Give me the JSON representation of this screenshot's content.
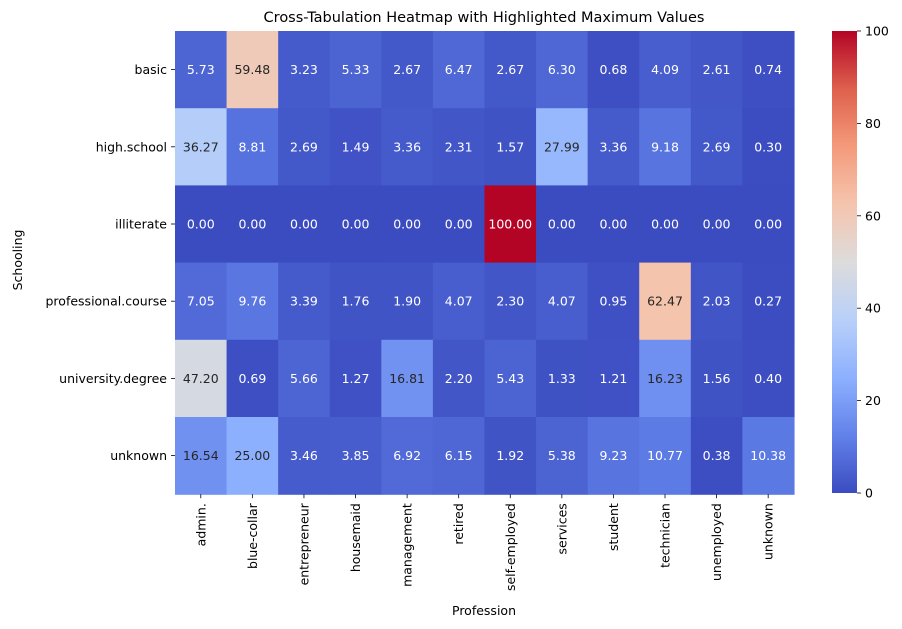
{
  "chart_data": {
    "type": "heatmap",
    "title": "Cross-Tabulation Heatmap with Highlighted Maximum Values",
    "xlabel": "Profession",
    "ylabel": "Schooling",
    "x_categories": [
      "admin.",
      "blue-collar",
      "entrepreneur",
      "housemaid",
      "management",
      "retired",
      "self-employed",
      "services",
      "student",
      "technician",
      "unemployed",
      "unknown"
    ],
    "y_categories": [
      "basic",
      "high.school",
      "illiterate",
      "professional.course",
      "university.degree",
      "unknown"
    ],
    "values": [
      [
        5.73,
        59.48,
        3.23,
        5.33,
        2.67,
        6.47,
        2.67,
        6.3,
        0.68,
        4.09,
        2.61,
        0.74
      ],
      [
        36.27,
        8.81,
        2.69,
        1.49,
        3.36,
        2.31,
        1.57,
        27.99,
        3.36,
        9.18,
        2.69,
        0.3
      ],
      [
        0.0,
        0.0,
        0.0,
        0.0,
        0.0,
        0.0,
        100.0,
        0.0,
        0.0,
        0.0,
        0.0,
        0.0
      ],
      [
        7.05,
        9.76,
        3.39,
        1.76,
        1.9,
        4.07,
        2.3,
        4.07,
        0.95,
        62.47,
        2.03,
        0.27
      ],
      [
        47.2,
        0.69,
        5.66,
        1.27,
        16.81,
        2.2,
        5.43,
        1.33,
        1.21,
        16.23,
        1.56,
        0.4
      ],
      [
        16.54,
        25.0,
        3.46,
        3.85,
        6.92,
        6.15,
        1.92,
        5.38,
        9.23,
        10.77,
        0.38,
        10.38
      ]
    ],
    "colormap": "coolwarm",
    "vmin": 0,
    "vmax": 100,
    "colorbar_ticks": [
      0,
      20,
      40,
      60,
      80,
      100
    ],
    "colors": {
      "text_light": "#ffffff",
      "text_dark": "#262626"
    }
  }
}
